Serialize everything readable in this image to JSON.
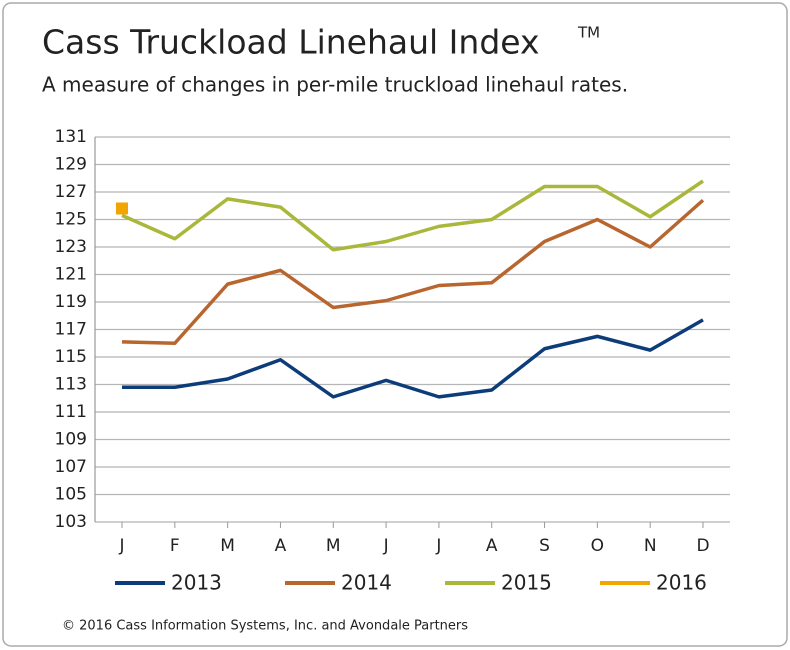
{
  "chart_data": {
    "type": "line",
    "title": "Cass Truckload Linehaul Index",
    "title_mark": "TM",
    "subtitle": "A measure of changes in per-mile truckload linehaul rates.",
    "footer": "© 2016 Cass Information Systems, Inc. and Avondale Partners",
    "categories": [
      "J",
      "F",
      "M",
      "A",
      "M",
      "J",
      "J",
      "A",
      "S",
      "O",
      "N",
      "D"
    ],
    "series": [
      {
        "name": "2013",
        "color": "#0d3c7a",
        "values": [
          112.8,
          112.8,
          113.4,
          114.8,
          112.1,
          113.3,
          112.1,
          112.6,
          115.6,
          116.5,
          115.5,
          117.7
        ]
      },
      {
        "name": "2014",
        "color": "#b8652e",
        "values": [
          116.1,
          116.0,
          120.3,
          121.3,
          118.6,
          119.1,
          120.2,
          120.4,
          123.4,
          125.0,
          123.0,
          126.4
        ]
      },
      {
        "name": "2015",
        "color": "#a9b83a",
        "values": [
          125.3,
          123.6,
          126.5,
          125.9,
          122.8,
          123.4,
          124.5,
          125.0,
          127.4,
          127.4,
          125.2,
          127.8
        ]
      },
      {
        "name": "2016",
        "color": "#f0a500",
        "values": [
          125.8,
          null,
          null,
          null,
          null,
          null,
          null,
          null,
          null,
          null,
          null,
          null
        ]
      }
    ],
    "ylim": [
      103,
      131
    ],
    "yticks": [
      103,
      105,
      107,
      109,
      111,
      113,
      115,
      117,
      119,
      121,
      123,
      125,
      127,
      129,
      131
    ],
    "grid": true
  }
}
